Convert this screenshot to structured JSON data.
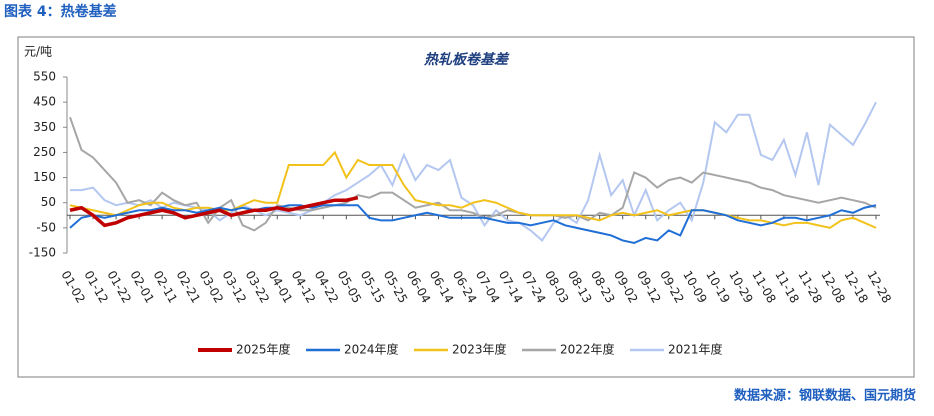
{
  "header": "图表 4：热卷基差",
  "source": "数据来源：钢联数据、国元期货",
  "chart_data": {
    "type": "line",
    "title": "热轧板卷基差",
    "y_label": "元/吨",
    "categories": [
      "01-02",
      null,
      "01-12",
      null,
      "01-22",
      null,
      "02-01",
      null,
      "02-11",
      null,
      "02-21",
      null,
      "03-02",
      null,
      "03-12",
      null,
      "03-22",
      null,
      "04-01",
      null,
      "04-12",
      null,
      "04-22",
      null,
      "05-05",
      null,
      "05-15",
      null,
      "05-25",
      null,
      "06-04",
      null,
      "06-14",
      null,
      "06-24",
      null,
      "07-04",
      null,
      "07-14",
      null,
      "07-24",
      null,
      "08-03",
      null,
      "08-13",
      null,
      "08-23",
      null,
      "09-02",
      null,
      "09-12",
      null,
      "09-22",
      null,
      "10-09",
      null,
      "10-19",
      null,
      "10-29",
      null,
      "11-08",
      null,
      "11-18",
      null,
      "11-28",
      null,
      "12-08",
      null,
      "12-18",
      null,
      "12-28"
    ],
    "ylim": [
      -150,
      550
    ],
    "yticks": [
      -150,
      -50,
      50,
      150,
      250,
      350,
      450,
      550
    ],
    "legend": "bottom",
    "series": [
      {
        "name": "2025年度",
        "color": "#c00000",
        "values": [
          20,
          30,
          0,
          -40,
          -30,
          -10,
          0,
          10,
          20,
          10,
          -10,
          0,
          10,
          20,
          0,
          10,
          20,
          20,
          30,
          20,
          30,
          40,
          50,
          60,
          60,
          70,
          null,
          null,
          null,
          null,
          null,
          null,
          null,
          null,
          null,
          null,
          null,
          null,
          null,
          null,
          null,
          null,
          null,
          null,
          null,
          null,
          null,
          null,
          null,
          null,
          null,
          null,
          null,
          null,
          null,
          null,
          null,
          null,
          null,
          null,
          null,
          null,
          null,
          null,
          null,
          null,
          null,
          null,
          null,
          null,
          null
        ]
      },
      {
        "name": "2024年度",
        "color": "#1f6fd6",
        "values": [
          -50,
          -10,
          0,
          -10,
          0,
          10,
          20,
          20,
          30,
          20,
          20,
          10,
          20,
          30,
          20,
          30,
          20,
          30,
          30,
          40,
          40,
          30,
          40,
          40,
          40,
          40,
          -10,
          -20,
          -20,
          -10,
          0,
          10,
          0,
          -10,
          -10,
          -10,
          -10,
          -20,
          -30,
          -30,
          -40,
          -30,
          -20,
          -40,
          -50,
          -60,
          -70,
          -80,
          -100,
          -110,
          -90,
          -100,
          -60,
          -80,
          20,
          20,
          10,
          0,
          -20,
          -30,
          -40,
          -30,
          -10,
          -10,
          -20,
          -10,
          0,
          20,
          10,
          30,
          40
        ]
      },
      {
        "name": "2023年度",
        "color": "#f2c21b",
        "values": [
          40,
          30,
          20,
          10,
          0,
          20,
          40,
          50,
          50,
          30,
          20,
          30,
          30,
          20,
          20,
          40,
          60,
          50,
          50,
          200,
          200,
          200,
          200,
          250,
          150,
          220,
          200,
          200,
          200,
          120,
          60,
          50,
          40,
          40,
          30,
          50,
          60,
          50,
          30,
          10,
          0,
          0,
          0,
          0,
          0,
          -10,
          -20,
          0,
          10,
          0,
          10,
          20,
          0,
          10,
          20,
          20,
          10,
          0,
          -10,
          -20,
          -20,
          -30,
          -40,
          -30,
          -30,
          -40,
          -50,
          -20,
          -10,
          -30,
          -50
        ]
      },
      {
        "name": "2022年度",
        "color": "#a6a6a6",
        "values": [
          390,
          260,
          230,
          180,
          130,
          50,
          60,
          40,
          90,
          60,
          40,
          50,
          -30,
          30,
          60,
          -40,
          -60,
          -30,
          40,
          30,
          20,
          20,
          30,
          40,
          50,
          80,
          70,
          90,
          90,
          60,
          30,
          40,
          50,
          20,
          20,
          10,
          -10,
          0,
          20,
          10,
          0,
          0,
          0,
          -10,
          0,
          -20,
          10,
          0,
          30,
          170,
          150,
          110,
          140,
          150,
          130,
          170,
          160,
          150,
          140,
          130,
          110,
          100,
          80,
          70,
          60,
          50,
          60,
          70,
          60,
          50,
          30
        ]
      },
      {
        "name": "2021年度",
        "color": "#b4c7f0",
        "values": [
          100,
          100,
          110,
          60,
          40,
          50,
          40,
          60,
          30,
          50,
          40,
          30,
          20,
          -20,
          10,
          40,
          20,
          0,
          20,
          10,
          0,
          20,
          50,
          80,
          100,
          130,
          160,
          200,
          120,
          240,
          140,
          200,
          180,
          220,
          70,
          40,
          -40,
          20,
          -20,
          -30,
          -60,
          -100,
          -30,
          0,
          -30,
          60,
          240,
          80,
          140,
          0,
          100,
          -20,
          20,
          50,
          -20,
          130,
          370,
          330,
          400,
          400,
          240,
          220,
          300,
          160,
          330,
          120,
          360,
          320,
          280,
          360,
          450
        ]
      }
    ]
  }
}
